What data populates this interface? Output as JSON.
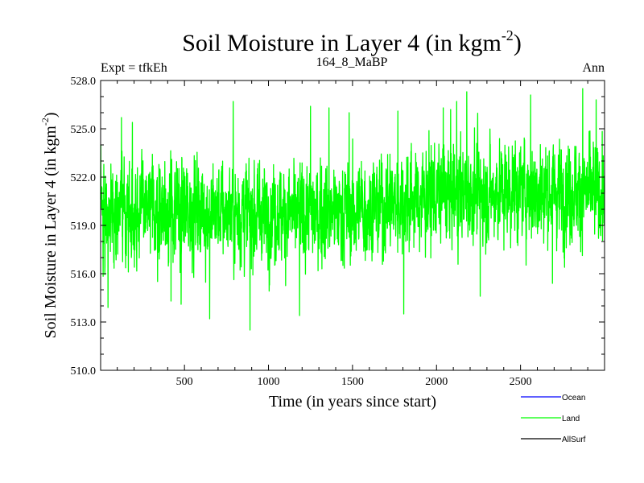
{
  "chart_data": {
    "type": "line",
    "title": "Soil Moisture in Layer 4 (in kgm",
    "title_sup": "-2",
    "title_end": ")",
    "left_label": "Expt = tfkEh",
    "center_label": "164_8_MaBP",
    "right_label": "Ann",
    "xlabel": "Time (in years since start)",
    "ylabel": "Soil Moisture in Layer 4 (in kgm",
    "ylabel_sup": "-2",
    "ylabel_end": ")",
    "xlim": [
      1,
      3000
    ],
    "ylim": [
      510.0,
      528.0
    ],
    "x_ticks": [
      500,
      1000,
      1500,
      2000,
      2500
    ],
    "x_tick_labels": [
      "500",
      "1000",
      "1500",
      "2000",
      "2500"
    ],
    "y_ticks": [
      510,
      513,
      516,
      519,
      522,
      525,
      528
    ],
    "y_tick_labels": [
      "510.0",
      "513.0",
      "516.0",
      "519.0",
      "522.0",
      "525.0",
      "528.0"
    ],
    "legend_position": "bottom-right",
    "legend": [
      {
        "name": "Ocean",
        "color": "#0000ff"
      },
      {
        "name": "Land",
        "color": "#00ff00"
      },
      {
        "name": "AllSurf",
        "color": "#000000"
      }
    ],
    "series": [
      {
        "name": "Land",
        "color": "#00ff00",
        "x_start": 1,
        "x_step": 1,
        "n_points": 3000,
        "trend_points": [
          [
            1,
            520.0
          ],
          [
            500,
            519.9
          ],
          [
            1000,
            519.7
          ],
          [
            1500,
            519.9
          ],
          [
            2000,
            520.9
          ],
          [
            2500,
            521.2
          ],
          [
            3000,
            521.0
          ]
        ],
        "typical_range": [
          515.0,
          525.5
        ],
        "min": 512.5,
        "max": 527.5,
        "extremes": [
          [
            45,
            513.9
          ],
          [
            125,
            525.7
          ],
          [
            190,
            525.4
          ],
          [
            420,
            514.3
          ],
          [
            480,
            514.1
          ],
          [
            650,
            513.2
          ],
          [
            790,
            526.7
          ],
          [
            890,
            512.5
          ],
          [
            1185,
            513.4
          ],
          [
            1250,
            526.4
          ],
          [
            1360,
            526.3
          ],
          [
            1480,
            526.0
          ],
          [
            1770,
            526.1
          ],
          [
            1805,
            513.5
          ],
          [
            2040,
            526.3
          ],
          [
            2120,
            526.7
          ],
          [
            2180,
            527.3
          ],
          [
            2260,
            514.6
          ],
          [
            2560,
            527.1
          ],
          [
            2690,
            515.4
          ],
          [
            2870,
            527.5
          ],
          [
            2950,
            526.8
          ]
        ]
      }
    ]
  }
}
